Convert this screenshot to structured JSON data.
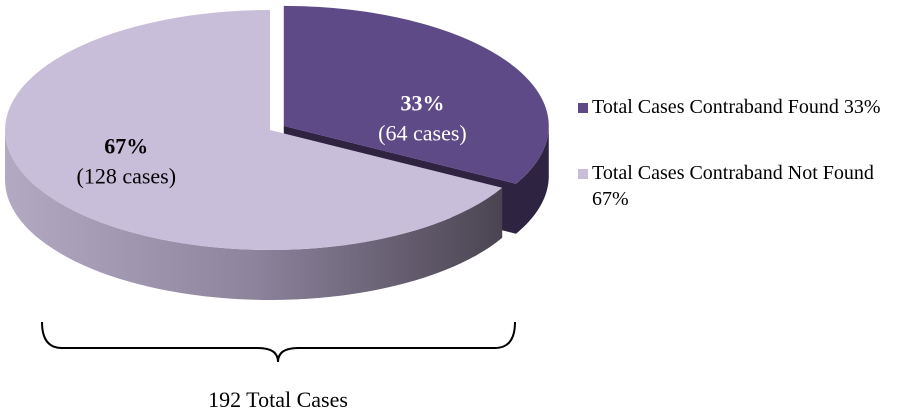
{
  "chart_data": {
    "type": "pie",
    "categories": [
      "Total Cases Contraband Found 33%",
      "Total Cases Contraband Not Found 67%"
    ],
    "values": [
      33,
      67
    ],
    "value_labels": [
      "33%",
      "67%"
    ],
    "case_labels": [
      "(64 cases)",
      "(128 cases)"
    ],
    "colors": [
      "#5d4a86",
      "#c9bed9"
    ],
    "side_colors": [
      "#2e2340",
      "#8d849c"
    ],
    "label_colors": [
      "#ffffff",
      "#000000"
    ],
    "annotation": "192 Total Cases"
  }
}
